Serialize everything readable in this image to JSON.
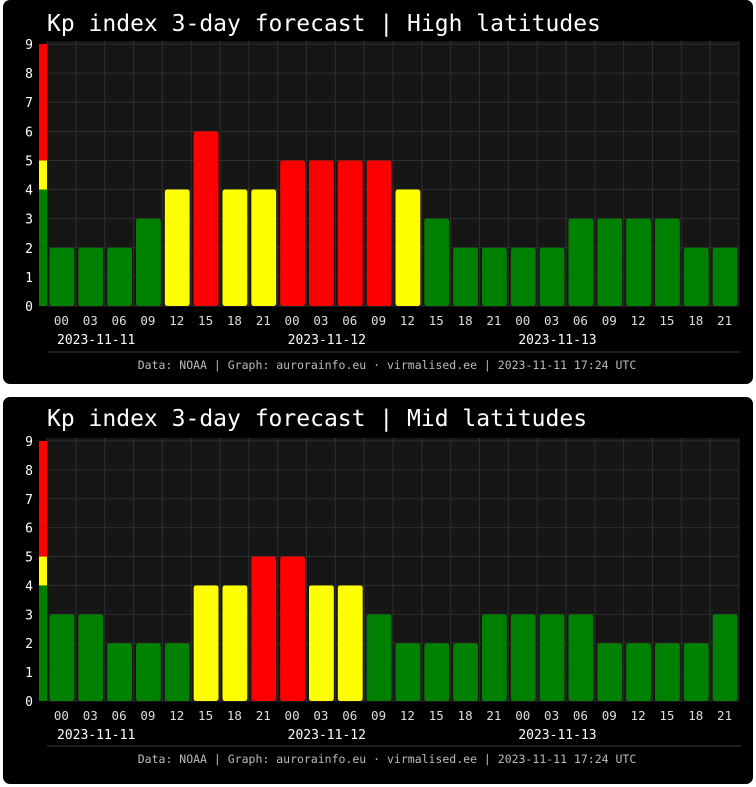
{
  "colors": {
    "background": "#000000",
    "plot_area": "#161616",
    "grid": "#2e2e2e",
    "quiet": "#008000",
    "active": "#ffff00",
    "storm": "#ff0000"
  },
  "chart_data": [
    {
      "type": "bar",
      "title": "Kp index 3-day forecast | High latitudes",
      "ylim": [
        0,
        9
      ],
      "yticks": [
        "0",
        "1",
        "2",
        "3",
        "4",
        "5",
        "6",
        "7",
        "8",
        "9"
      ],
      "categories": [
        "00",
        "03",
        "06",
        "09",
        "12",
        "15",
        "18",
        "21",
        "00",
        "03",
        "06",
        "09",
        "12",
        "15",
        "18",
        "21",
        "00",
        "03",
        "06",
        "09",
        "12",
        "15",
        "18",
        "21"
      ],
      "dates": [
        "2023-11-11",
        "2023-11-12",
        "2023-11-13"
      ],
      "values": [
        2,
        2,
        2,
        3,
        4,
        6,
        4,
        4,
        5,
        5,
        5,
        5,
        4,
        3,
        2,
        2,
        2,
        2,
        3,
        3,
        3,
        3,
        2,
        2
      ],
      "grid": true,
      "credit": "Data: NOAA | Graph: aurorainfo.eu · virmalised.ee | 2023-11-11 17:24 UTC"
    },
    {
      "type": "bar",
      "title": "Kp index 3-day forecast | Mid latitudes",
      "ylim": [
        0,
        9
      ],
      "yticks": [
        "0",
        "1",
        "2",
        "3",
        "4",
        "5",
        "6",
        "7",
        "8",
        "9"
      ],
      "categories": [
        "00",
        "03",
        "06",
        "09",
        "12",
        "15",
        "18",
        "21",
        "00",
        "03",
        "06",
        "09",
        "12",
        "15",
        "18",
        "21",
        "00",
        "03",
        "06",
        "09",
        "12",
        "15",
        "18",
        "21"
      ],
      "dates": [
        "2023-11-11",
        "2023-11-12",
        "2023-11-13"
      ],
      "values": [
        3,
        3,
        2,
        2,
        2,
        4,
        4,
        5,
        5,
        4,
        4,
        3,
        2,
        2,
        2,
        3,
        3,
        3,
        3,
        2,
        2,
        2,
        2,
        3
      ],
      "grid": true,
      "credit": "Data: NOAA | Graph: aurorainfo.eu · virmalised.ee | 2023-11-11 17:24 UTC"
    }
  ]
}
